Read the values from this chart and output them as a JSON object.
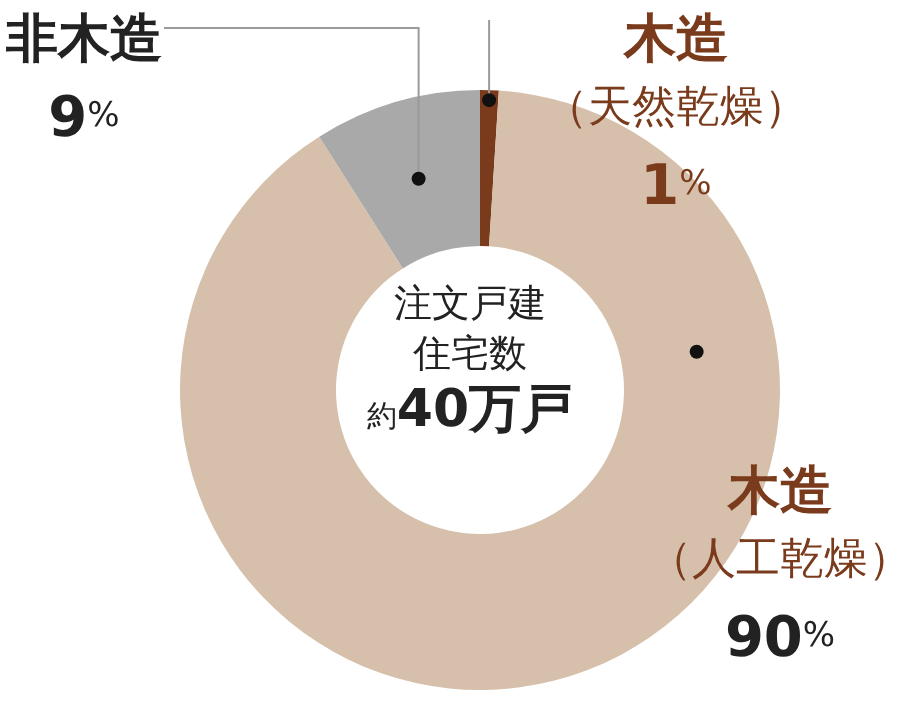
{
  "chart_data": {
    "type": "donut",
    "categories": [
      "木造（天然乾燥）",
      "木造（人工乾燥）",
      "非木造"
    ],
    "values": [
      1,
      90,
      9
    ],
    "value_labels": [
      "1%",
      "90%",
      "9%"
    ],
    "colors": [
      "#7a3a1c",
      "#d6c0ab",
      "#a9a9a9"
    ],
    "annotations": [
      "注文戸建住宅数約40万戸"
    ],
    "legend": false
  }
}
